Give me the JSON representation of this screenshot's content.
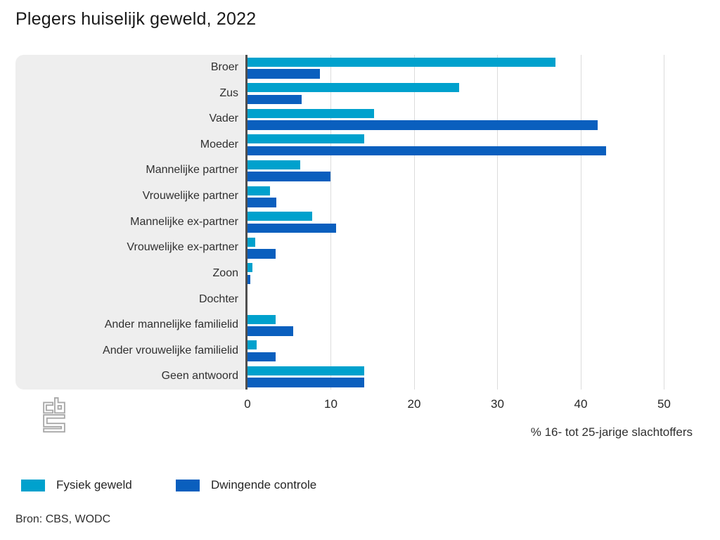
{
  "page": {
    "title": "Plegers huiselijk geweld, 2022",
    "source": "Bron: CBS, WODC"
  },
  "colors": {
    "fysiek_geweld": "#00a1cd",
    "dwingende_controle": "#0a5fbe",
    "panel_background": "#eeeeee",
    "axis_line": "#4f4f4f",
    "gridline": "#dcdcdc",
    "logo_gray": "#a8a8a8"
  },
  "chart_data": {
    "type": "bar",
    "orientation": "horizontal",
    "title": "Plegers huiselijk geweld, 2022",
    "xlabel": "% 16- tot 25-jarige slachtoffers",
    "xlim": [
      0,
      53
    ],
    "xticks": [
      0,
      10,
      20,
      30,
      40,
      50
    ],
    "grid": true,
    "legend_position": "bottom",
    "categories": [
      "Broer",
      "Zus",
      "Vader",
      "Moeder",
      "Mannelijke partner",
      "Vrouwelijke partner",
      "Mannelijke ex-partner",
      "Vrouwelijke ex-partner",
      "Zoon",
      "Dochter",
      "Ander mannelijke familielid",
      "Ander vrouwelijke familielid",
      "Geen antwoord"
    ],
    "series": [
      {
        "name": "Fysiek geweld",
        "color": "#00a1cd",
        "values": [
          37,
          25.4,
          15.2,
          14,
          6.3,
          2.7,
          7.8,
          0.9,
          0.6,
          0,
          3.4,
          1.1,
          14
        ]
      },
      {
        "name": "Dwingende controle",
        "color": "#0a5fbe",
        "values": [
          8.7,
          6.5,
          42,
          43,
          10,
          3.5,
          10.6,
          3.4,
          0.3,
          0,
          5.5,
          3.4,
          14
        ]
      }
    ]
  }
}
